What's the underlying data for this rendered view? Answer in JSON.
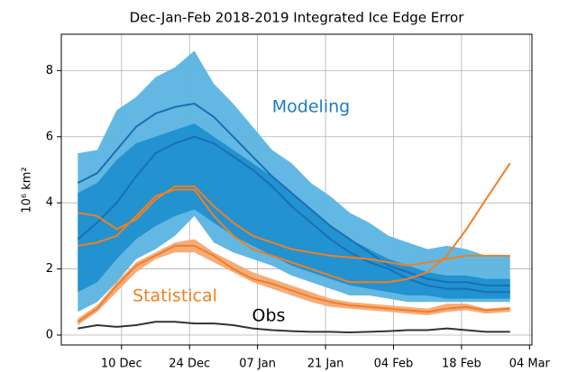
{
  "chart_data": {
    "type": "line",
    "title": "Dec-Jan-Feb 2018-2019 Integrated Ice Edge Error",
    "y_label": "10⁶ km²",
    "x": [
      0,
      4,
      8,
      12,
      16,
      20,
      24,
      28,
      32,
      36,
      40,
      44,
      48,
      52,
      56,
      60,
      64,
      68,
      72,
      76,
      80,
      84,
      89
    ],
    "xlim": [
      -3.4,
      93.5
    ],
    "xticks": [
      {
        "value": 9,
        "label": "10 Dec"
      },
      {
        "value": 23,
        "label": "24 Dec"
      },
      {
        "value": 37,
        "label": "07 Jan"
      },
      {
        "value": 51,
        "label": "21 Jan"
      },
      {
        "value": 65,
        "label": "04 Feb"
      },
      {
        "value": 79,
        "label": "18 Feb"
      },
      {
        "value": 93,
        "label": "04 Mar"
      }
    ],
    "ylim": [
      -0.3,
      9.1
    ],
    "yticks": [
      0,
      2,
      4,
      6,
      8
    ],
    "grid": true,
    "bands": [
      {
        "color": "#5ab4e0",
        "upper": [
          5.5,
          5.6,
          6.8,
          7.2,
          7.8,
          8.1,
          8.6,
          7.6,
          7.0,
          6.3,
          5.6,
          5.2,
          4.6,
          4.2,
          3.7,
          3.4,
          3.0,
          2.8,
          2.6,
          2.7,
          2.6,
          2.4,
          2.4
        ],
        "lower": [
          0.7,
          1.0,
          1.6,
          2.3,
          2.6,
          3.0,
          3.6,
          2.8,
          2.5,
          2.3,
          2.1,
          1.8,
          1.6,
          1.4,
          1.2,
          1.2,
          1.1,
          1.0,
          1.0,
          1.0,
          1.0,
          1.0,
          1.0
        ]
      },
      {
        "color": "#1f8fd0",
        "upper": [
          4.3,
          4.6,
          5.3,
          5.8,
          6.0,
          6.2,
          6.4,
          6.0,
          5.6,
          5.2,
          4.8,
          4.3,
          3.8,
          3.3,
          2.9,
          2.6,
          2.3,
          2.1,
          1.9,
          1.8,
          1.8,
          1.7,
          1.7
        ],
        "lower": [
          1.3,
          1.6,
          2.3,
          2.9,
          3.3,
          3.6,
          3.8,
          3.4,
          3.0,
          2.7,
          2.4,
          2.1,
          1.9,
          1.7,
          1.5,
          1.4,
          1.3,
          1.2,
          1.2,
          1.1,
          1.1,
          1.1,
          1.1
        ]
      },
      {
        "color": "#f6a873",
        "upper": [
          0.5,
          0.9,
          1.6,
          2.2,
          2.5,
          2.8,
          2.9,
          2.5,
          2.2,
          1.9,
          1.7,
          1.5,
          1.3,
          1.1,
          1.0,
          0.95,
          0.9,
          0.85,
          0.8,
          0.95,
          0.95,
          0.8,
          0.85
        ],
        "lower": [
          0.3,
          0.7,
          1.3,
          1.9,
          2.3,
          2.5,
          2.5,
          2.2,
          1.9,
          1.6,
          1.4,
          1.2,
          1.0,
          0.85,
          0.8,
          0.75,
          0.7,
          0.65,
          0.6,
          0.7,
          0.75,
          0.65,
          0.7
        ]
      }
    ],
    "series": [
      {
        "color": "#1a6fb5",
        "values": [
          4.6,
          4.9,
          5.6,
          6.3,
          6.7,
          6.9,
          7.0,
          6.6,
          6.0,
          5.4,
          4.8,
          4.3,
          3.8,
          3.3,
          2.9,
          2.5,
          2.1,
          1.9,
          1.7,
          1.6,
          1.6,
          1.5,
          1.5
        ]
      },
      {
        "color": "#1a6fb5",
        "values": [
          2.9,
          3.4,
          4.0,
          4.8,
          5.5,
          5.8,
          6.0,
          5.8,
          5.4,
          5.0,
          4.5,
          3.9,
          3.4,
          2.9,
          2.5,
          2.2,
          2.0,
          1.7,
          1.5,
          1.4,
          1.4,
          1.3,
          1.3
        ]
      },
      {
        "color": "#f07f24",
        "values": [
          0.4,
          0.8,
          1.5,
          2.1,
          2.4,
          2.7,
          2.7,
          2.4,
          2.0,
          1.7,
          1.55,
          1.35,
          1.15,
          1.0,
          0.9,
          0.85,
          0.8,
          0.75,
          0.7,
          0.8,
          0.85,
          0.75,
          0.8
        ]
      },
      {
        "color": "#f07f24",
        "values": [
          2.7,
          2.8,
          3.0,
          3.6,
          4.2,
          4.4,
          4.4,
          3.6,
          3.0,
          2.6,
          2.4,
          2.2,
          2.0,
          1.8,
          1.6,
          1.6,
          1.6,
          1.7,
          1.9,
          2.4,
          3.2,
          4.1,
          5.2
        ]
      },
      {
        "color": "#f07f24",
        "values": [
          3.7,
          3.6,
          3.2,
          3.5,
          4.1,
          4.5,
          4.5,
          3.9,
          3.4,
          3.0,
          2.8,
          2.6,
          2.5,
          2.4,
          2.35,
          2.3,
          2.2,
          2.1,
          2.2,
          2.3,
          2.4,
          2.4,
          2.4
        ]
      },
      {
        "color": "#333333",
        "values": [
          0.2,
          0.3,
          0.25,
          0.3,
          0.4,
          0.4,
          0.35,
          0.35,
          0.3,
          0.2,
          0.15,
          0.12,
          0.1,
          0.1,
          0.08,
          0.1,
          0.12,
          0.15,
          0.15,
          0.2,
          0.15,
          0.1,
          0.1
        ]
      }
    ],
    "annotations": [
      {
        "text": "Modeling",
        "color": "#1a7cc4"
      },
      {
        "text": "Statistical",
        "color": "#f07f24"
      },
      {
        "text": "Obs",
        "color": "#000000"
      }
    ]
  }
}
